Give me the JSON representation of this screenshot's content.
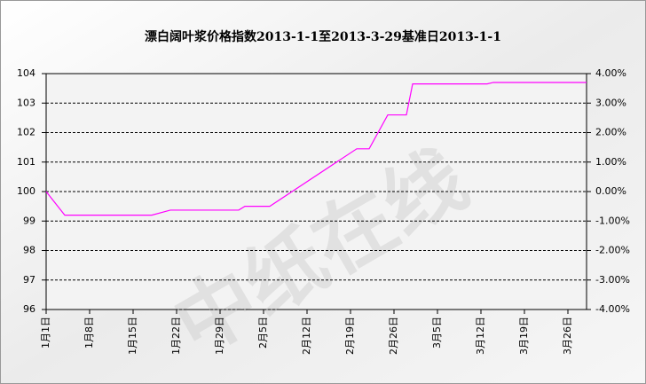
{
  "chart_data": {
    "type": "line",
    "title": "漂白阔叶浆价格指数2013-1-1至2013-3-29基准日2013-1-1",
    "watermark": "中纸在线",
    "x": [
      0,
      3,
      17,
      20,
      31,
      32,
      36,
      50,
      52,
      55,
      58,
      59,
      71,
      72,
      87
    ],
    "series": [
      {
        "name": "漂白阔叶浆价格指数",
        "color": "#ff00ff",
        "values": [
          100,
          99.2,
          99.2,
          99.37,
          99.37,
          99.5,
          99.5,
          101.45,
          101.45,
          102.6,
          102.6,
          103.65,
          103.65,
          103.7,
          103.7
        ]
      }
    ],
    "xlim": [
      0,
      87
    ],
    "xticks": [
      {
        "value": 0,
        "label": "1月1日"
      },
      {
        "value": 7,
        "label": "1月8日"
      },
      {
        "value": 14,
        "label": "1月15日"
      },
      {
        "value": 21,
        "label": "1月22日"
      },
      {
        "value": 28,
        "label": "1月29日"
      },
      {
        "value": 35,
        "label": "2月5日"
      },
      {
        "value": 42,
        "label": "2月12日"
      },
      {
        "value": 49,
        "label": "2月19日"
      },
      {
        "value": 56,
        "label": "2月26日"
      },
      {
        "value": 63,
        "label": "3月5日"
      },
      {
        "value": 70,
        "label": "3月12日"
      },
      {
        "value": 77,
        "label": "3月19日"
      },
      {
        "value": 84,
        "label": "3月26日"
      }
    ],
    "ylim": [
      96,
      104
    ],
    "yticks": [
      96,
      97,
      98,
      99,
      100,
      101,
      102,
      103,
      104
    ],
    "y2lim": [
      -4,
      4
    ],
    "y2ticks": [
      {
        "value": -4,
        "label": "-4.00%"
      },
      {
        "value": -3,
        "label": "-3.00%"
      },
      {
        "value": -2,
        "label": "-2.00%"
      },
      {
        "value": -1,
        "label": "-1.00%"
      },
      {
        "value": 0,
        "label": "0.00%"
      },
      {
        "value": 1,
        "label": "1.00%"
      },
      {
        "value": 2,
        "label": "2.00%"
      },
      {
        "value": 3,
        "label": "3.00%"
      },
      {
        "value": 4,
        "label": "4.00%"
      }
    ],
    "grid": true
  }
}
